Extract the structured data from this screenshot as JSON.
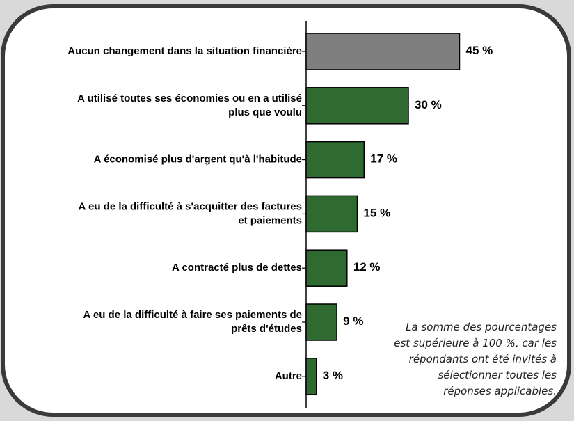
{
  "chart_data": {
    "type": "bar",
    "orientation": "horizontal",
    "categories": [
      "Aucun changement dans la situation financière",
      "A utilisé toutes ses économies ou en a utilisé\nplus que voulu",
      "A économisé plus d'argent qu'à l'habitude",
      "A eu de la difficulté à s'acquitter des factures\net paiements",
      "A contracté plus de dettes",
      "A eu de la difficulté à faire ses paiements de\nprêts d'études",
      "Autre"
    ],
    "values": [
      45,
      30,
      17,
      15,
      12,
      9,
      3
    ],
    "value_labels": [
      "45 %",
      "30 %",
      "17 %",
      "15 %",
      "12 %",
      "9 %",
      "3 %"
    ],
    "colors": [
      "#7f7f7f",
      "#2f6b31",
      "#2f6b31",
      "#2f6b31",
      "#2f6b31",
      "#2f6b31",
      "#2f6b31"
    ],
    "annotation": "La somme des pourcentages\nest supérieure à 100 %, car les\nrépondants ont été invités à\nsélectionner toutes les\nréponses applicables."
  }
}
